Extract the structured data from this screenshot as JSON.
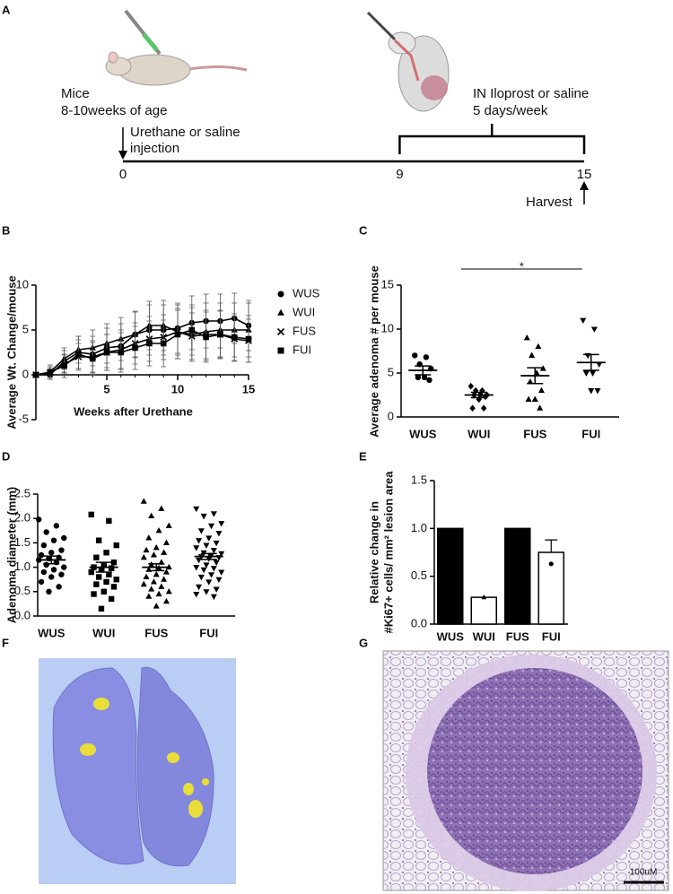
{
  "figure": {
    "panel_labels": [
      "A",
      "B",
      "C",
      "D",
      "E",
      "F",
      "G"
    ],
    "timeline": {
      "mice": "Mice",
      "age": "8-10weeks of age",
      "injection": [
        "Urethane or saline",
        "injection"
      ],
      "treatment": [
        "IN Iloprost or saline",
        "5 days/week"
      ],
      "harvest": "Harvest",
      "xlim": [
        0,
        15
      ],
      "ticks": [
        0,
        9,
        15
      ]
    },
    "significance": "*",
    "scale_bar": "100uM"
  },
  "chart_data": [
    {
      "type": "line",
      "y_label": "Average Wt. Change/mouse",
      "x_label": "Weeks after Urethane",
      "x": [
        0,
        1,
        2,
        3,
        4,
        5,
        6,
        7,
        8,
        9,
        10,
        11,
        12,
        13,
        14,
        15
      ],
      "xlim": [
        0,
        15
      ],
      "xticks": [
        5,
        10,
        15
      ],
      "ylim": [
        -5,
        10
      ],
      "yticks": [
        -5,
        0,
        5,
        10
      ],
      "legend": "right",
      "series": [
        {
          "name": "WUS",
          "color": "#000000",
          "marker": "circle",
          "values": [
            0,
            0,
            1.5,
            2.5,
            2.3,
            3,
            3.2,
            4.5,
            5,
            5,
            5.2,
            5.8,
            6,
            6,
            6.3,
            5.5
          ],
          "errors": [
            0,
            0.5,
            1.2,
            1.8,
            2,
            2.2,
            2.5,
            2.5,
            2.8,
            2.8,
            2.8,
            3,
            3,
            3,
            2.8,
            2.8
          ]
        },
        {
          "name": "WUI",
          "color": "#000000",
          "marker": "triangle",
          "values": [
            0,
            0.3,
            1.8,
            2.8,
            3,
            3.5,
            4,
            4.5,
            5.5,
            5.5,
            4.8,
            4.5,
            4.8,
            5,
            5,
            5
          ],
          "errors": [
            0,
            0.6,
            1.2,
            1.5,
            2,
            2.2,
            2.4,
            2.6,
            2.7,
            2.8,
            3,
            3,
            3.2,
            3,
            3,
            3
          ]
        },
        {
          "name": "FUS",
          "color": "#000000",
          "marker": "x",
          "values": [
            0,
            0.2,
            1.2,
            2,
            2,
            2.5,
            2.8,
            3.5,
            4,
            4.2,
            4.8,
            4.3,
            4.5,
            4.5,
            4,
            3.8
          ],
          "errors": [
            0,
            0.5,
            1,
            1.5,
            1.8,
            2,
            2.2,
            2.3,
            2.5,
            2.5,
            2.6,
            2.6,
            2.7,
            2.6,
            2.5,
            2.4
          ]
        },
        {
          "name": "FUI",
          "color": "#000000",
          "marker": "square",
          "values": [
            0,
            0.3,
            1,
            2.3,
            1.8,
            2.5,
            2.5,
            3,
            3.5,
            3.5,
            4.5,
            5,
            4.2,
            4.5,
            4.2,
            4
          ],
          "errors": [
            0,
            0.8,
            1.3,
            1.6,
            1.8,
            2,
            2.2,
            2.4,
            2.5,
            2.6,
            2.7,
            2.8,
            2.8,
            2.7,
            2.6,
            2.6
          ]
        }
      ]
    },
    {
      "type": "dot",
      "y_label": "Average adenoma # per mouse",
      "categories": [
        "WUS",
        "WUI",
        "FUS",
        "FUI"
      ],
      "markers": [
        "circle",
        "diamond",
        "triangle",
        "triangle-down"
      ],
      "color": "#000000",
      "ylim": [
        0,
        15
      ],
      "yticks": [
        0,
        5,
        10,
        15
      ],
      "points": [
        [
          7,
          6.8,
          6,
          5.5,
          4.5,
          4.5,
          4.2
        ],
        [
          3.5,
          3,
          3,
          2.5,
          2.5,
          2.5,
          2.3,
          2,
          1,
          1
        ],
        [
          9,
          8,
          7,
          5.5,
          5,
          4,
          3,
          2,
          2,
          1
        ],
        [
          11,
          10,
          7,
          6,
          5,
          5,
          3,
          3
        ]
      ],
      "means": [
        5.3,
        2.5,
        4.7,
        6.2
      ],
      "errors": [
        0.5,
        0.3,
        0.9,
        0.9
      ]
    },
    {
      "type": "dot",
      "y_label": "Adenoma diameter (mm)",
      "categories": [
        "WUS",
        "WUI",
        "FUS",
        "FUI"
      ],
      "markers": [
        "circle",
        "square",
        "triangle",
        "triangle-down"
      ],
      "color": "#000000",
      "ylim": [
        0,
        2.5
      ],
      "yticks": [
        {
          "value": 0,
          "label": "0.0"
        },
        0.5,
        {
          "value": 1,
          "label": "1.0"
        },
        1.5,
        {
          "value": 2,
          "label": "2.0"
        },
        2.5
      ],
      "points": [
        [
          1.98,
          1.85,
          1.72,
          1.6,
          1.55,
          1.45,
          1.35,
          1.3,
          1.25,
          1.2,
          1.18,
          1.15,
          1.1,
          1.05,
          1.0,
          0.95,
          0.9,
          0.85,
          0.8,
          0.7,
          0.6,
          0.5
        ],
        [
          2.08,
          1.95,
          1.55,
          1.45,
          1.3,
          1.2,
          1.1,
          1.05,
          1.0,
          0.98,
          0.95,
          0.9,
          0.85,
          0.8,
          0.75,
          0.7,
          0.65,
          0.6,
          0.5,
          0.45,
          0.35,
          0.15
        ],
        [
          2.35,
          2.2,
          2.05,
          1.85,
          1.75,
          1.6,
          1.5,
          1.4,
          1.35,
          1.3,
          1.25,
          1.2,
          1.1,
          1.05,
          1.0,
          0.98,
          0.95,
          0.9,
          0.85,
          0.8,
          0.75,
          0.7,
          0.65,
          0.6,
          0.55,
          0.5,
          0.45,
          0.4,
          0.3,
          0.2
        ],
        [
          2.2,
          2.1,
          2.05,
          1.9,
          1.85,
          1.75,
          1.7,
          1.6,
          1.55,
          1.5,
          1.45,
          1.4,
          1.35,
          1.3,
          1.28,
          1.25,
          1.22,
          1.2,
          1.18,
          1.15,
          1.1,
          1.05,
          1.0,
          0.98,
          0.95,
          0.9,
          0.85,
          0.8,
          0.75,
          0.7,
          0.6,
          0.55,
          0.5,
          0.45,
          0.4
        ]
      ],
      "means": [
        1.15,
        1.0,
        1.0,
        1.22
      ],
      "errors": [
        0.08,
        0.1,
        0.07,
        0.06
      ]
    },
    {
      "type": "bar",
      "y_label": [
        "Relative change in",
        "#Ki67+ cells/ mm² lesion area"
      ],
      "categories": [
        "WUS",
        "WUI",
        "FUS",
        "FUI"
      ],
      "values": [
        1,
        0.28,
        1,
        0.75
      ],
      "colors": [
        "#000000",
        "#ffffff",
        "#000000",
        "#ffffff"
      ],
      "markers": [
        "circle",
        "triangle",
        "circle",
        "circle"
      ],
      "points": [
        [],
        [
          0.28
        ],
        [],
        [
          0.63
        ]
      ],
      "errors": [
        null,
        null,
        null,
        0.13
      ],
      "ylim": [
        0,
        1.5
      ],
      "yticks": [
        {
          "value": 0,
          "label": "0.0"
        },
        0.5,
        {
          "value": 1,
          "label": "1.0"
        },
        1.5
      ]
    }
  ]
}
